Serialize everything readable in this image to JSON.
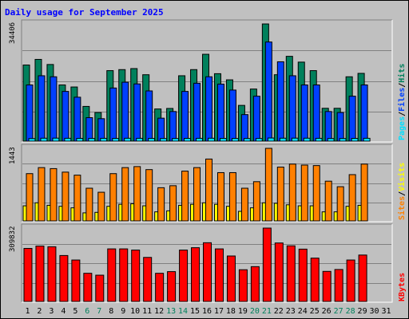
{
  "title": "Daily usage for September 2025",
  "colors": {
    "hits": "#00805c",
    "files": "#0040ff",
    "pages": "#00e0ff",
    "visits": "#ffff00",
    "sites": "#ff8000",
    "kbytes": "#ff0000",
    "weekend": "#00805c",
    "weekday": "#000000",
    "bg": "#c0c0c0"
  },
  "chart_data": [
    {
      "type": "bar",
      "panel": "top",
      "ylabel_max": "34406",
      "ymax": 34406,
      "categories": [
        "1",
        "2",
        "3",
        "4",
        "5",
        "6",
        "7",
        "8",
        "9",
        "10",
        "11",
        "12",
        "13",
        "14",
        "15",
        "16",
        "17",
        "18",
        "19",
        "20",
        "21",
        "22",
        "23",
        "24",
        "25",
        "26",
        "27",
        "28",
        "29",
        "30",
        "31"
      ],
      "weekend_days": [
        "6",
        "7",
        "13",
        "14",
        "20",
        "21",
        "27",
        "28"
      ],
      "series": [
        {
          "name": "Hits",
          "values": [
            22350,
            24000,
            22500,
            16500,
            15900,
            10200,
            8400,
            20700,
            21000,
            21300,
            19500,
            9450,
            9600,
            19200,
            21000,
            25500,
            19800,
            18000,
            10500,
            15300,
            34400,
            19500,
            24900,
            23200,
            20700,
            9650,
            9650,
            18900,
            19900,
            null,
            null
          ]
        },
        {
          "name": "Files",
          "values": [
            16500,
            19200,
            18900,
            14600,
            12900,
            6900,
            6600,
            15600,
            17300,
            16800,
            14750,
            6750,
            8700,
            14600,
            17000,
            18900,
            16750,
            15000,
            7800,
            13200,
            29100,
            23300,
            19200,
            16500,
            16500,
            8700,
            8400,
            13200,
            16500,
            null,
            null
          ]
        },
        {
          "name": "Pages",
          "values": [
            840,
            960,
            980,
            930,
            900,
            880,
            920,
            880,
            940,
            920,
            890,
            860,
            860,
            900,
            920,
            950,
            890,
            880,
            860,
            870,
            1020,
            960,
            980,
            960,
            920,
            860,
            860,
            900,
            930,
            null,
            null
          ]
        }
      ],
      "legend": [
        "Pages",
        "Files",
        "Hits"
      ]
    },
    {
      "type": "bar",
      "panel": "middle",
      "ylabel_max": "1443",
      "ymax": 1443,
      "categories": [
        "1",
        "2",
        "3",
        "4",
        "5",
        "6",
        "7",
        "8",
        "9",
        "10",
        "11",
        "12",
        "13",
        "14",
        "15",
        "16",
        "17",
        "18",
        "19",
        "20",
        "21",
        "22",
        "23",
        "24",
        "25",
        "26",
        "27",
        "28",
        "29",
        "30",
        "31"
      ],
      "series": [
        {
          "name": "Visits",
          "values": [
            300,
            360,
            310,
            290,
            260,
            160,
            170,
            290,
            330,
            340,
            300,
            180,
            200,
            310,
            330,
            360,
            330,
            290,
            190,
            260,
            360,
            350,
            320,
            300,
            300,
            180,
            180,
            290,
            310,
            null,
            null
          ]
        },
        {
          "name": "Sites",
          "values": [
            940,
            1060,
            1040,
            970,
            910,
            650,
            570,
            940,
            1060,
            1080,
            1020,
            660,
            700,
            990,
            1060,
            1230,
            960,
            960,
            650,
            780,
            1443,
            1070,
            1130,
            1110,
            1100,
            790,
            680,
            920,
            1130,
            null,
            null
          ]
        }
      ],
      "legend": [
        "Sites",
        "Visits"
      ]
    },
    {
      "type": "bar",
      "panel": "bottom",
      "ylabel_max": "309832",
      "ymax": 309832,
      "categories": [
        "1",
        "2",
        "3",
        "4",
        "5",
        "6",
        "7",
        "8",
        "9",
        "10",
        "11",
        "12",
        "13",
        "14",
        "15",
        "16",
        "17",
        "18",
        "19",
        "20",
        "21",
        "22",
        "23",
        "24",
        "25",
        "26",
        "27",
        "28",
        "29",
        "30",
        "31"
      ],
      "series": [
        {
          "name": "KBytes",
          "values": [
            224000,
            234000,
            231000,
            194000,
            175000,
            119000,
            111000,
            222000,
            222000,
            217000,
            186000,
            119000,
            126000,
            217000,
            227000,
            248000,
            222000,
            192000,
            134000,
            147000,
            309832,
            247000,
            235000,
            221000,
            183000,
            127000,
            135000,
            175000,
            196000,
            null,
            null
          ]
        }
      ],
      "legend": [
        "KBytes"
      ]
    }
  ]
}
